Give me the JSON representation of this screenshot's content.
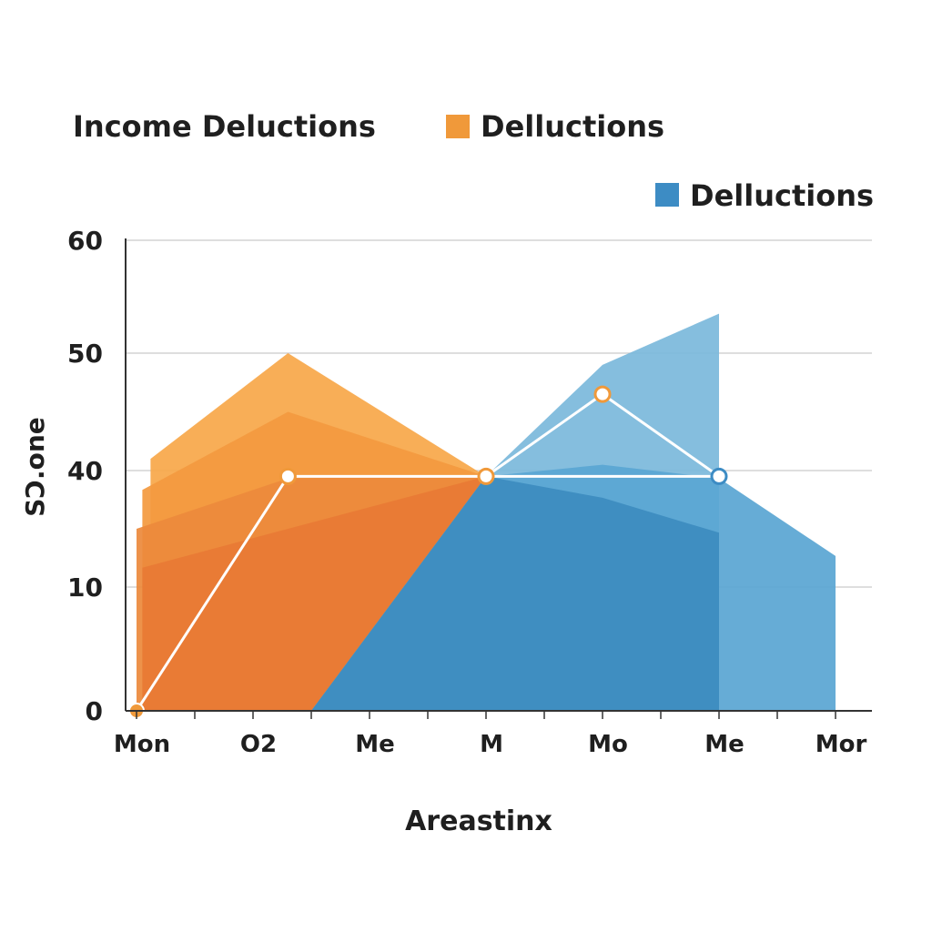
{
  "chart_data": {
    "type": "area",
    "title": "Income Deluctions",
    "xlabel": "Areastinx",
    "ylabel": "SↃ.one",
    "y_ticks": [
      "0",
      "10",
      "40",
      "50",
      "60"
    ],
    "ylim": [
      0,
      60
    ],
    "x_tick_labels": [
      "Mon",
      "O2",
      "Me",
      "M",
      "Mo",
      "Me",
      "Mor"
    ],
    "grid": "horizontal",
    "legend_position": "top-right",
    "legend": [
      {
        "label": "Delluctions",
        "color": "#f0993a"
      },
      {
        "label": "Delluctions",
        "color": "#3d8cc4"
      }
    ],
    "series": [
      {
        "color": "#f7a84a",
        "values": [
          [
            0.12,
            0
          ],
          [
            0.12,
            41
          ],
          [
            1.3,
            50
          ],
          [
            3.0,
            38.5
          ],
          [
            3.0,
            0
          ]
        ]
      },
      {
        "color": "#f39a40",
        "values": [
          [
            0.05,
            0
          ],
          [
            0.05,
            35
          ],
          [
            1.3,
            45
          ],
          [
            3.0,
            38.5
          ],
          [
            3.0,
            0
          ]
        ]
      },
      {
        "color": "#ec8a3c",
        "values": [
          [
            0.0,
            0
          ],
          [
            0.0,
            25
          ],
          [
            1.3,
            38
          ],
          [
            3.0,
            38.5
          ],
          [
            3.0,
            0
          ]
        ]
      },
      {
        "color": "#e87a35",
        "values": [
          [
            0.05,
            0
          ],
          [
            0.05,
            15
          ],
          [
            1.3,
            25
          ],
          [
            3.0,
            38.5
          ],
          [
            3.0,
            0
          ]
        ]
      },
      {
        "color": "#7cb9dc",
        "values": [
          [
            1.5,
            0
          ],
          [
            3.0,
            38.5
          ],
          [
            4.0,
            49
          ],
          [
            5.0,
            53.5
          ],
          [
            5.0,
            0
          ]
        ]
      },
      {
        "color": "#5aa6d3",
        "values": [
          [
            1.5,
            0
          ],
          [
            3.0,
            38.5
          ],
          [
            4.0,
            40.5
          ],
          [
            5.0,
            38
          ],
          [
            6.0,
            18
          ],
          [
            6.0,
            0
          ]
        ]
      },
      {
        "color": "#3d8cc0",
        "values": [
          [
            1.5,
            0
          ],
          [
            3.0,
            38.5
          ],
          [
            4.0,
            33
          ],
          [
            5.0,
            24
          ],
          [
            5.0,
            0
          ]
        ]
      }
    ],
    "line": {
      "color": "#ffffff",
      "values": [
        [
          0,
          0
        ],
        [
          1.3,
          38.5
        ],
        [
          3.0,
          38.5
        ],
        [
          5.0,
          38.5
        ]
      ]
    },
    "line_peak": {
      "color": "#ffffff",
      "values": [
        [
          3.0,
          38.5
        ],
        [
          4.0,
          46.5
        ],
        [
          5.0,
          38.5
        ]
      ]
    },
    "markers": [
      {
        "x": 0,
        "y": 0,
        "style": "filled",
        "color": "#f0993a"
      },
      {
        "x": 1.3,
        "y": 38.5,
        "style": "hollow",
        "color": "#f0993a"
      },
      {
        "x": 3.0,
        "y": 38.5,
        "style": "hollow",
        "color": "#f0993a"
      },
      {
        "x": 4.0,
        "y": 46.5,
        "style": "hollow",
        "color": "#f0993a"
      },
      {
        "x": 5.0,
        "y": 38.5,
        "style": "hollow",
        "color": "#3d8cc4"
      }
    ]
  }
}
